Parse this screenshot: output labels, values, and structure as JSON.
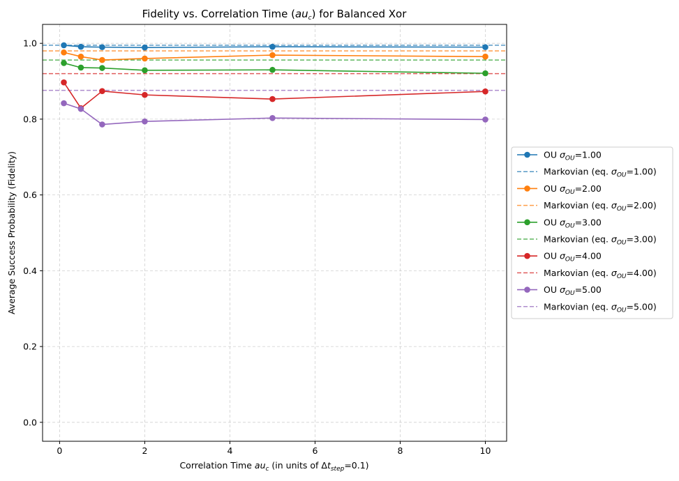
{
  "chart_data": {
    "type": "line",
    "title_prefix": "Fidelity vs. Correlation Time (",
    "title_math": "au",
    "title_math_sub": "c",
    "title_suffix": ") for Balanced Xor",
    "xlabel_prefix": "Correlation Time ",
    "xlabel_math": "au",
    "xlabel_math_sub": "c",
    "xlabel_mid": " (in units of Δ",
    "xlabel_math2": "t",
    "xlabel_math2_sub": "step",
    "xlabel_suffix": "=0.1)",
    "ylabel": "Average Success Probability (Fidelity)",
    "xlim": [
      -0.4,
      10.5
    ],
    "ylim": [
      -0.05,
      1.05
    ],
    "xticks": [
      0,
      2,
      4,
      6,
      8,
      10
    ],
    "xtick_labels": [
      "0",
      "2",
      "4",
      "6",
      "8",
      "10"
    ],
    "yticks": [
      0.0,
      0.2,
      0.4,
      0.6,
      0.8,
      1.0
    ],
    "ytick_labels": [
      "0.0",
      "0.2",
      "0.4",
      "0.6",
      "0.8",
      "1.0"
    ],
    "grid": true,
    "legend_position": "center-right outside",
    "x": [
      0.1,
      0.5,
      1,
      2,
      5,
      10
    ],
    "series": [
      {
        "name": "OU σOU=1.00",
        "label_prefix": "OU ",
        "label_sigma": "σ",
        "label_sub": "OU",
        "label_value": "=1.00",
        "color": "#1f77b4",
        "values": [
          0.995,
          0.991,
          0.99,
          0.989,
          0.991,
          0.99
        ],
        "markovian_label_prefix": "Markovian (eq. ",
        "markovian_label_value": "=1.00)",
        "markovian_value": 0.995
      },
      {
        "name": "OU σOU=2.00",
        "label_prefix": "OU ",
        "label_sigma": "σ",
        "label_sub": "OU",
        "label_value": "=2.00",
        "color": "#ff7f0e",
        "values": [
          0.976,
          0.965,
          0.956,
          0.96,
          0.969,
          0.965
        ],
        "markovian_label_prefix": "Markovian (eq. ",
        "markovian_label_value": "=2.00)",
        "markovian_value": 0.98
      },
      {
        "name": "OU σOU=3.00",
        "label_prefix": "OU ",
        "label_sigma": "σ",
        "label_sub": "OU",
        "label_value": "=3.00",
        "color": "#2ca02c",
        "values": [
          0.948,
          0.936,
          0.935,
          0.929,
          0.93,
          0.921
        ],
        "markovian_label_prefix": "Markovian (eq. ",
        "markovian_label_value": "=3.00)",
        "markovian_value": 0.956
      },
      {
        "name": "OU σOU=4.00",
        "label_prefix": "OU ",
        "label_sigma": "σ",
        "label_sub": "OU",
        "label_value": "=4.00",
        "color": "#d62728",
        "values": [
          0.897,
          0.829,
          0.874,
          0.864,
          0.853,
          0.873
        ],
        "markovian_label_prefix": "Markovian (eq. ",
        "markovian_label_value": "=4.00)",
        "markovian_value": 0.92
      },
      {
        "name": "OU σOU=5.00",
        "label_prefix": "OU ",
        "label_sigma": "σ",
        "label_sub": "OU",
        "label_value": "=5.00",
        "color": "#9467bd",
        "values": [
          0.842,
          0.827,
          0.786,
          0.794,
          0.803,
          0.799
        ],
        "markovian_label_prefix": "Markovian (eq. ",
        "markovian_label_value": "=5.00)",
        "markovian_value": 0.876
      }
    ]
  }
}
